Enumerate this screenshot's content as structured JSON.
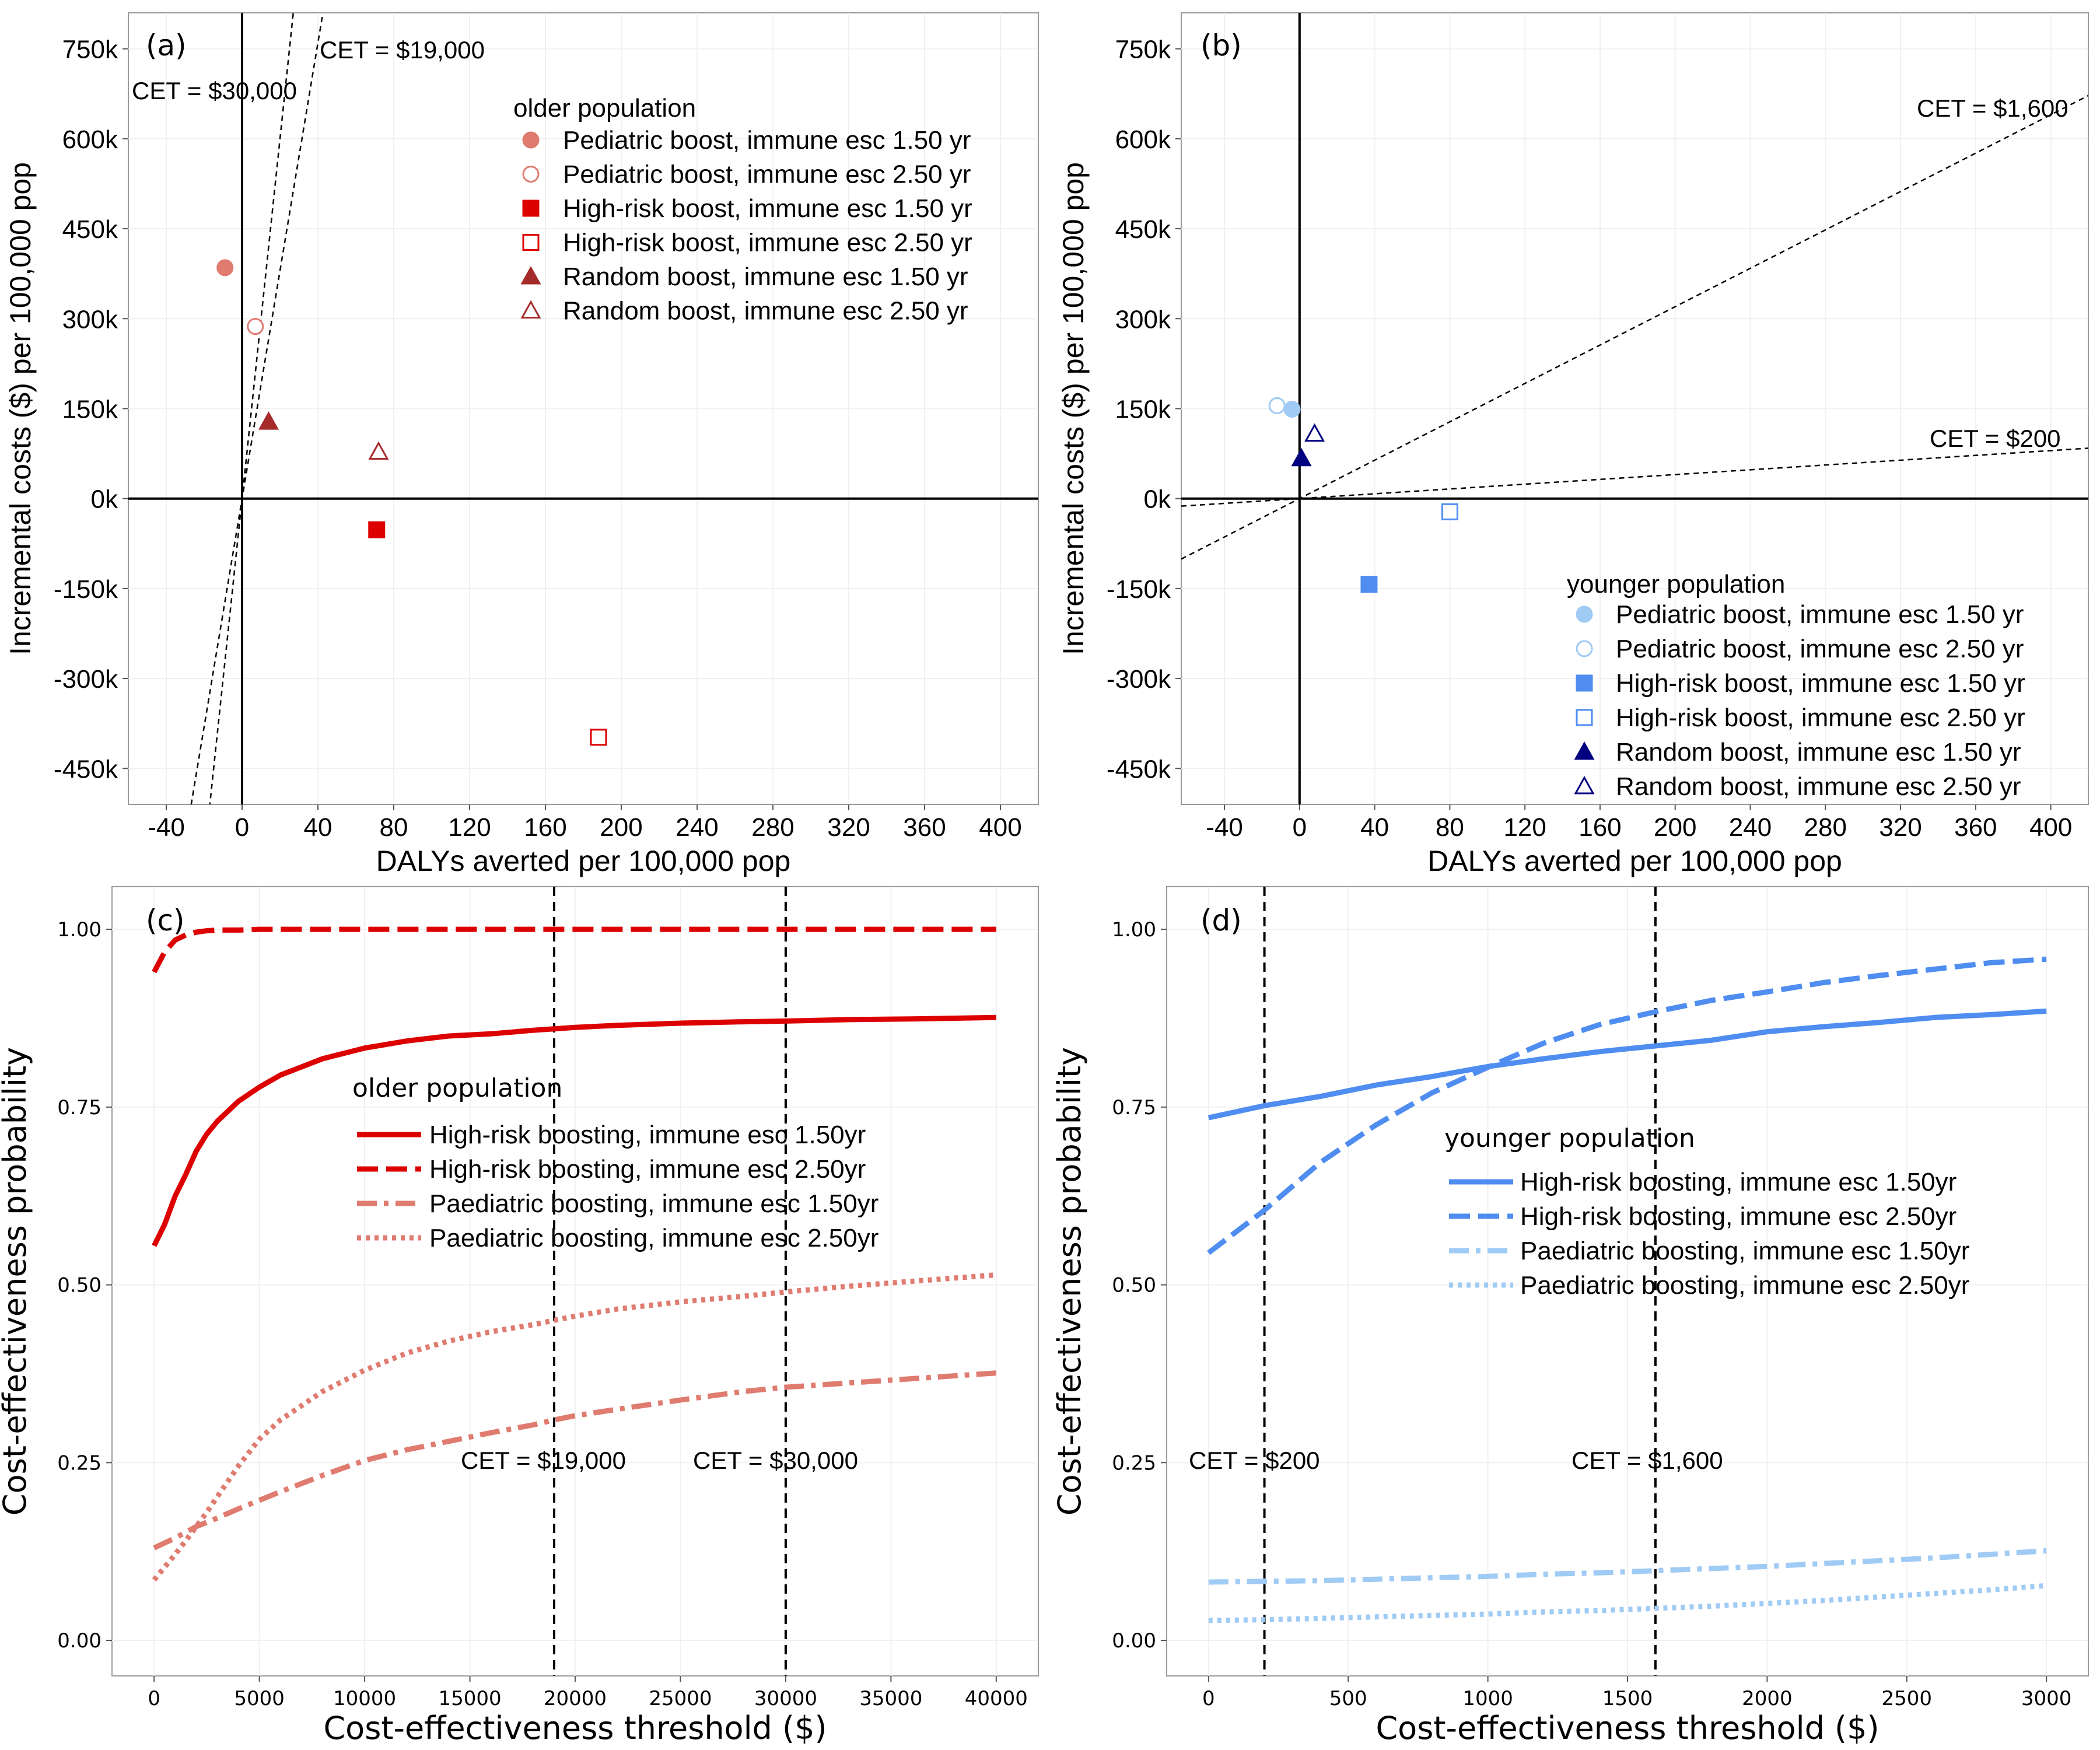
{
  "chart_data": [
    {
      "panel": "(a)",
      "type": "scatter",
      "xlabel": "DALYs averted per 100,000 pop",
      "ylabel": "Incremental costs ($) per 100,000 pop",
      "xlim": [
        -60,
        420
      ],
      "ylim": [
        -510000,
        810000
      ],
      "xticks": [
        -40,
        0,
        40,
        80,
        120,
        160,
        200,
        240,
        280,
        320,
        360,
        400
      ],
      "yticks": [
        -450000,
        -300000,
        -150000,
        0,
        150000,
        300000,
        450000,
        600000,
        750000
      ],
      "ytick_labels": [
        "-450k",
        "-300k",
        "-150k",
        "0k",
        "150k",
        "300k",
        "450k",
        "600k",
        "750k"
      ],
      "legend_title": "older population",
      "legend_position": "top-right",
      "points": [
        {
          "name": "Pediatric boost, immune esc 1.50 yr",
          "x": -9,
          "y": 385000,
          "shape": "circle",
          "filled": true,
          "color": "#E07B70"
        },
        {
          "name": "Pediatric boost, immune esc 2.50 yr",
          "x": 7,
          "y": 287000,
          "shape": "circle",
          "filled": false,
          "color": "#E07B70"
        },
        {
          "name": "High-risk boost, immune esc 1.50 yr",
          "x": 71,
          "y": -52000,
          "shape": "square",
          "filled": true,
          "color": "#DD0000"
        },
        {
          "name": "High-risk boost, immune esc 2.50 yr",
          "x": 188,
          "y": -398000,
          "shape": "square",
          "filled": false,
          "color": "#DD0000"
        },
        {
          "name": "Random boost, immune esc 1.50 yr",
          "x": 14,
          "y": 128000,
          "shape": "triangle",
          "filled": true,
          "color": "#A52A2A"
        },
        {
          "name": "Random boost, immune esc 2.50 yr",
          "x": 72,
          "y": 78000,
          "shape": "triangle",
          "filled": false,
          "color": "#A52A2A"
        }
      ],
      "cet_lines": [
        {
          "label": "CET = $19,000",
          "slope": 19000
        },
        {
          "label": "CET = $30,000",
          "slope": 30000
        }
      ]
    },
    {
      "panel": "(b)",
      "type": "scatter",
      "xlabel": "DALYs averted per 100,000 pop",
      "ylabel": "Incremental costs ($) per 100,000 pop",
      "xlim": [
        -63,
        420
      ],
      "ylim": [
        -510000,
        810000
      ],
      "xticks": [
        -40,
        0,
        40,
        80,
        120,
        160,
        200,
        240,
        280,
        320,
        360,
        400
      ],
      "yticks": [
        -450000,
        -300000,
        -150000,
        0,
        150000,
        300000,
        450000,
        600000,
        750000
      ],
      "ytick_labels": [
        "-450k",
        "-300k",
        "-150k",
        "0k",
        "150k",
        "300k",
        "450k",
        "600k",
        "750k"
      ],
      "legend_title": "younger population",
      "legend_position": "bottom-right",
      "points": [
        {
          "name": "Pediatric boost, immune esc 1.50 yr",
          "x": -4,
          "y": 149000,
          "shape": "circle",
          "filled": true,
          "color": "#9FCBF5"
        },
        {
          "name": "Pediatric boost, immune esc 2.50 yr",
          "x": -12,
          "y": 155000,
          "shape": "circle",
          "filled": false,
          "color": "#9FCBF5"
        },
        {
          "name": "High-risk boost, immune esc 1.50 yr",
          "x": 37,
          "y": -143000,
          "shape": "square",
          "filled": true,
          "color": "#4F8DF0"
        },
        {
          "name": "High-risk boost, immune esc 2.50 yr",
          "x": 80,
          "y": -22000,
          "shape": "square",
          "filled": false,
          "color": "#4F8DF0"
        },
        {
          "name": "Random boost, immune esc 1.50 yr",
          "x": 1,
          "y": 67000,
          "shape": "triangle",
          "filled": true,
          "color": "#000080"
        },
        {
          "name": "Random boost, immune esc 2.50 yr",
          "x": 8,
          "y": 108000,
          "shape": "triangle",
          "filled": false,
          "color": "#000080"
        }
      ],
      "cet_lines": [
        {
          "label": "CET = $1,600",
          "slope": 1600
        },
        {
          "label": "CET = $200",
          "slope": 200
        }
      ]
    },
    {
      "panel": "(c)",
      "type": "line",
      "xlabel": "Cost-effectiveness threshold ($)",
      "ylabel": "Cost-effectiveness probability",
      "xlim": [
        -2000,
        42000
      ],
      "ylim": [
        -0.05,
        1.06
      ],
      "xticks": [
        0,
        5000,
        10000,
        15000,
        20000,
        25000,
        30000,
        35000,
        40000
      ],
      "yticks": [
        0,
        0.25,
        0.5,
        0.75,
        1.0
      ],
      "ytick_labels": [
        "0.00",
        "0.25",
        "0.50",
        "0.75",
        "1.00"
      ],
      "legend_title": "older population",
      "legend_position": "center",
      "x": [
        0,
        500,
        1000,
        1500,
        2000,
        2500,
        3000,
        4000,
        5000,
        6000,
        8000,
        10000,
        12000,
        14000,
        16000,
        18000,
        19000,
        20000,
        22000,
        25000,
        28000,
        30000,
        33000,
        36000,
        40000
      ],
      "series": [
        {
          "name": "High-risk boosting, immune esc 1.50yr",
          "color": "#DD0000",
          "dash": "solid",
          "values": [
            0.555,
            0.585,
            0.625,
            0.655,
            0.688,
            0.712,
            0.73,
            0.758,
            0.778,
            0.795,
            0.818,
            0.833,
            0.843,
            0.85,
            0.853,
            0.858,
            0.86,
            0.862,
            0.865,
            0.868,
            0.87,
            0.871,
            0.873,
            0.874,
            0.876
          ]
        },
        {
          "name": "High-risk boosting, immune esc 2.50yr",
          "color": "#DD0000",
          "dash": "dashed",
          "values": [
            0.94,
            0.968,
            0.985,
            0.992,
            0.996,
            0.998,
            0.999,
            0.999,
            1.0,
            1.0,
            1.0,
            1.0,
            1.0,
            1.0,
            1.0,
            1.0,
            1.0,
            1.0,
            1.0,
            1.0,
            1.0,
            1.0,
            1.0,
            1.0,
            1.0
          ]
        },
        {
          "name": "Paediatric boosting, immune esc 1.50yr",
          "color": "#E07B70",
          "dash": "dashdot",
          "values": [
            0.13,
            0.137,
            0.144,
            0.152,
            0.16,
            0.166,
            0.172,
            0.185,
            0.197,
            0.209,
            0.232,
            0.253,
            0.268,
            0.28,
            0.292,
            0.303,
            0.31,
            0.316,
            0.325,
            0.338,
            0.35,
            0.356,
            0.362,
            0.368,
            0.376
          ]
        },
        {
          "name": "Paediatric boosting, immune esc 2.50yr",
          "color": "#E07B70",
          "dash": "dotted",
          "values": [
            0.085,
            0.103,
            0.121,
            0.14,
            0.16,
            0.18,
            0.202,
            0.245,
            0.283,
            0.31,
            0.35,
            0.38,
            0.404,
            0.421,
            0.434,
            0.444,
            0.45,
            0.456,
            0.466,
            0.476,
            0.484,
            0.49,
            0.498,
            0.505,
            0.514
          ]
        }
      ],
      "cet_lines": [
        {
          "label": "CET = $19,000",
          "x": 19000
        },
        {
          "label": "CET = $30,000",
          "x": 30000
        }
      ]
    },
    {
      "panel": "(d)",
      "type": "line",
      "xlabel": "Cost-effectiveness threshold ($)",
      "ylabel": "Cost-effectiveness probability",
      "xlim": [
        -150,
        3150
      ],
      "ylim": [
        -0.05,
        1.06
      ],
      "xticks": [
        0,
        500,
        1000,
        1500,
        2000,
        2500,
        3000
      ],
      "yticks": [
        0,
        0.25,
        0.5,
        0.75,
        1.0
      ],
      "ytick_labels": [
        "0.00",
        "0.25",
        "0.50",
        "0.75",
        "1.00"
      ],
      "legend_title": "younger population",
      "legend_position": "center",
      "x": [
        0,
        200,
        400,
        600,
        800,
        1000,
        1200,
        1400,
        1600,
        1800,
        2000,
        2200,
        2400,
        2600,
        2800,
        3000
      ],
      "series": [
        {
          "name": "High-risk boosting, immune esc 1.50yr",
          "color": "#4F8DF0",
          "dash": "solid",
          "values": [
            0.735,
            0.752,
            0.765,
            0.781,
            0.793,
            0.807,
            0.818,
            0.828,
            0.836,
            0.844,
            0.856,
            0.863,
            0.869,
            0.876,
            0.88,
            0.885
          ]
        },
        {
          "name": "High-risk boosting, immune esc 2.50yr",
          "color": "#4F8DF0",
          "dash": "dashed",
          "values": [
            0.545,
            0.605,
            0.672,
            0.725,
            0.77,
            0.806,
            0.84,
            0.866,
            0.884,
            0.9,
            0.912,
            0.925,
            0.935,
            0.944,
            0.953,
            0.958
          ]
        },
        {
          "name": "Paediatric boosting, immune esc 1.50yr",
          "color": "#9FCBF5",
          "dash": "dashdot",
          "values": [
            0.082,
            0.083,
            0.084,
            0.086,
            0.088,
            0.09,
            0.093,
            0.095,
            0.098,
            0.101,
            0.104,
            0.108,
            0.112,
            0.116,
            0.121,
            0.126
          ]
        },
        {
          "name": "Paediatric boosting, immune esc 2.50yr",
          "color": "#9FCBF5",
          "dash": "dotted",
          "values": [
            0.028,
            0.029,
            0.031,
            0.033,
            0.035,
            0.037,
            0.04,
            0.042,
            0.045,
            0.048,
            0.052,
            0.056,
            0.061,
            0.066,
            0.071,
            0.077
          ]
        }
      ],
      "cet_lines": [
        {
          "label": "CET = $200",
          "x": 200
        },
        {
          "label": "CET = $1,600",
          "x": 1600
        }
      ]
    }
  ]
}
